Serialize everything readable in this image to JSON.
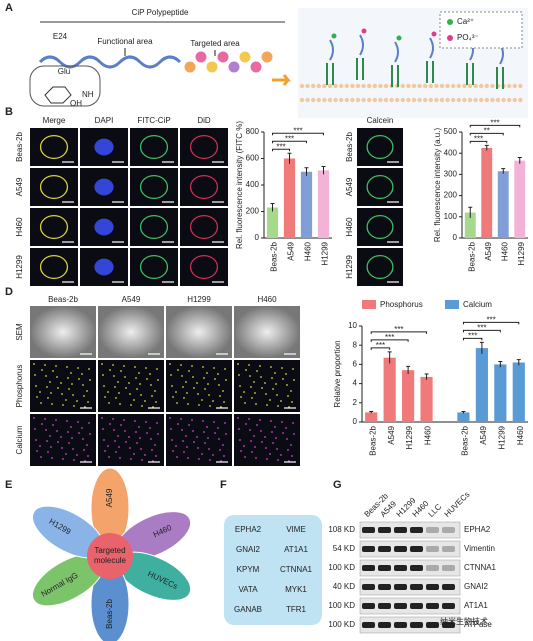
{
  "panel_labels": [
    "A",
    "B",
    "C",
    "D",
    "E",
    "F",
    "G"
  ],
  "panel_a": {
    "title": "CiP Polypeptide",
    "e24": "E24",
    "functional": "Functional area",
    "targeted": "Targeted area",
    "glu": "Glu",
    "nh": "NH",
    "oh": "OH",
    "ions": [
      "Ca²⁺",
      "PO₄³⁻"
    ]
  },
  "panel_b": {
    "columns": [
      "Merge",
      "DAPI",
      "FITC-CiP",
      "DiD"
    ],
    "rows": [
      "Beas-2b",
      "A549",
      "H460",
      "H1299"
    ]
  },
  "panel_c": {
    "column": "Calcein",
    "rows": [
      "Beas-2b",
      "A549",
      "H460",
      "H1299"
    ]
  },
  "panel_d": {
    "columns": [
      "Beas-2b",
      "A549",
      "H1299",
      "H460"
    ],
    "rows": [
      "SEM",
      "Phosphorus",
      "Calcium"
    ]
  },
  "panel_e": {
    "center": [
      "Targeted",
      "molecule"
    ],
    "petals": [
      "A549",
      "H460",
      "HUVECs",
      "Beas-2b",
      "Normal IgG",
      "H1299"
    ]
  },
  "panel_f": {
    "genes": [
      [
        "EPHA2",
        "VIME"
      ],
      [
        "GNAI2",
        "AT1A1"
      ],
      [
        "KPYM",
        "CTNNA1"
      ],
      [
        "VATA",
        "MYK1"
      ],
      [
        "GANAB",
        "TFR1"
      ]
    ]
  },
  "panel_g": {
    "columns": [
      "Beas-2b",
      "A549",
      "H1299",
      "H460",
      "LLC",
      "HUVECs"
    ],
    "rows": [
      {
        "size": "108 KD",
        "protein": "EPHA2"
      },
      {
        "size": "54 KD",
        "protein": "Vimentin"
      },
      {
        "size": "100 KD",
        "protein": "CTNNA1"
      },
      {
        "size": "40 KD",
        "protein": "GNAI2"
      },
      {
        "size": "100 KD",
        "protein": "AT1A1"
      },
      {
        "size": "100 KD",
        "protein": "ATPase"
      }
    ]
  },
  "watermark": "纳米生物技术",
  "chart_data": [
    {
      "type": "bar",
      "y_label": "Rel. fluorescence intensity (FITC %)",
      "categories": [
        "Beas-2b",
        "A549",
        "H460",
        "H1299"
      ],
      "values": [
        230,
        600,
        500,
        510
      ],
      "errors": [
        30,
        40,
        30,
        30
      ],
      "colors": [
        "#a6d98c",
        "#f07a7a",
        "#7f9fd6",
        "#f2b3d6"
      ],
      "ylim": [
        0,
        800
      ],
      "yticks": [
        0,
        200,
        400,
        600,
        800
      ],
      "annotations": [
        "***",
        "***",
        "***"
      ]
    },
    {
      "type": "bar",
      "y_label": "Rel. fluorescence intensity (a.u.)",
      "categories": [
        "Beas-2b",
        "A549",
        "H460",
        "H1299"
      ],
      "values": [
        120,
        425,
        315,
        365
      ],
      "errors": [
        25,
        12,
        12,
        15
      ],
      "colors": [
        "#a6d98c",
        "#f07a7a",
        "#7f9fd6",
        "#f2b3d6"
      ],
      "ylim": [
        0,
        500
      ],
      "yticks": [
        0,
        100,
        200,
        300,
        400,
        500
      ],
      "annotations": [
        "***",
        "**",
        "***"
      ]
    },
    {
      "type": "bar",
      "y_label": "Relative proportion",
      "categories": [
        "Beas-2b",
        "A549",
        "H1299",
        "H460"
      ],
      "series": [
        {
          "name": "Phosphorus",
          "color": "#f07a7a",
          "values": [
            1,
            6.7,
            5.4,
            4.7
          ],
          "errors": [
            0.1,
            0.6,
            0.4,
            0.3
          ],
          "annotations": [
            "***",
            "***",
            "***"
          ]
        },
        {
          "name": "Calcium",
          "color": "#5b9bd5",
          "values": [
            1,
            7.7,
            6,
            6.2
          ],
          "errors": [
            0.1,
            0.6,
            0.3,
            0.3
          ],
          "annotations": [
            "***",
            "***",
            "***"
          ]
        }
      ],
      "ylim": [
        0,
        10
      ],
      "yticks": [
        0,
        2,
        4,
        6,
        8,
        10
      ]
    }
  ]
}
